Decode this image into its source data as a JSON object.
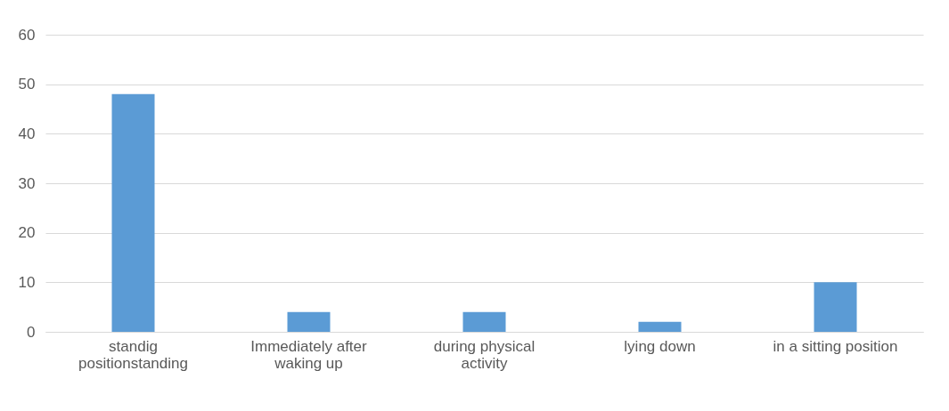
{
  "chart_data": {
    "type": "bar",
    "categories": [
      "standig positionstanding",
      "Immediately after waking up",
      "during physical activity",
      "lying down",
      "in a sitting position"
    ],
    "values": [
      48,
      4,
      4,
      2,
      10
    ],
    "color": "#5b9bd5",
    "ylim": [
      0,
      60
    ],
    "yticks": [
      0,
      10,
      20,
      30,
      40,
      50,
      60
    ],
    "grid": "y"
  }
}
